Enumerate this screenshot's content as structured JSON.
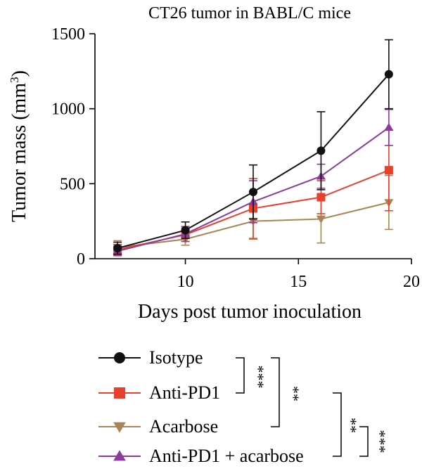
{
  "chart_data": {
    "type": "line",
    "title": "CT26 tumor in BABL/C mice",
    "xlabel": "Days post tumor inoculation",
    "ylabel": "Tumor mass (mm",
    "ylabel_sup": "3",
    "ylabel_end": ")",
    "xlim": [
      6,
      20
    ],
    "ylim": [
      0,
      1500
    ],
    "xticks": [
      10,
      15,
      20
    ],
    "yticks": [
      0,
      500,
      1000,
      1500
    ],
    "grid": false,
    "legend_position": "bottom",
    "x": [
      7,
      10,
      13,
      16,
      19
    ],
    "series": [
      {
        "name": "Isotype",
        "color": "#111111",
        "marker": "circle",
        "values": [
          70,
          190,
          445,
          720,
          1230
        ],
        "errors": [
          40,
          55,
          180,
          260,
          230
        ]
      },
      {
        "name": "Anti-PD1",
        "color": "#e8402b",
        "marker": "square",
        "values": [
          60,
          160,
          335,
          410,
          590
        ],
        "errors": [
          35,
          45,
          200,
          110,
          270
        ]
      },
      {
        "name": "Acarbose",
        "color": "#a98457",
        "marker": "triangle-down",
        "values": [
          75,
          130,
          250,
          265,
          375
        ],
        "errors": [
          45,
          40,
          120,
          160,
          180
        ]
      },
      {
        "name": "Anti-PD1 + acarbose",
        "color": "#8e3a9d",
        "marker": "triangle-up",
        "values": [
          50,
          165,
          380,
          550,
          875
        ],
        "errors": [
          30,
          50,
          140,
          80,
          120
        ]
      }
    ],
    "significance": [
      {
        "between": [
          "Isotype",
          "Anti-PD1"
        ],
        "label": "***"
      },
      {
        "between": [
          "Isotype",
          "Acarbose"
        ],
        "label": "**"
      },
      {
        "between": [
          "Anti-PD1",
          "Anti-PD1 + acarbose"
        ],
        "label": "**"
      },
      {
        "between": [
          "Acarbose",
          "Anti-PD1 + acarbose"
        ],
        "label": "***"
      }
    ]
  }
}
